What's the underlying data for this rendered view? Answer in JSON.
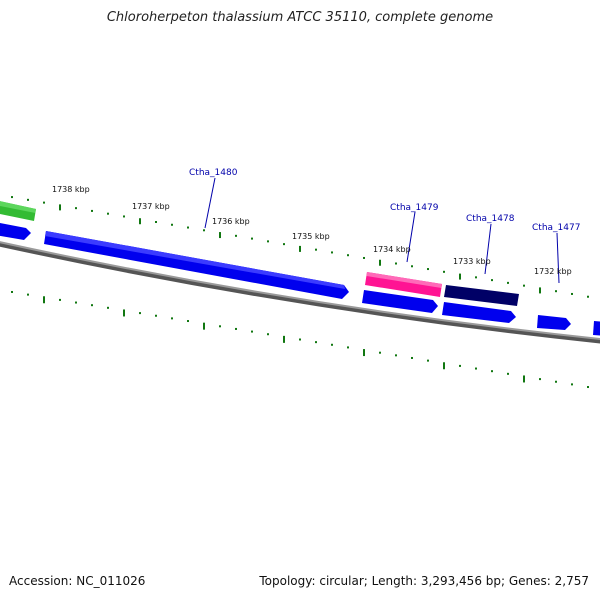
{
  "title": "Chloroherpeton thalassium ATCC 35110, complete genome",
  "footer": {
    "accession": "Accession: NC_011026",
    "summary": "Topology: circular; Length: 3,293,456 bp; Genes: 2,757"
  },
  "scale_labels": [
    "1738 kbp",
    "1737 kbp",
    "1736 kbp",
    "1735 kbp",
    "1734 kbp",
    "1733 kbp",
    "1732 kbp"
  ],
  "gene_labels": [
    "Ctha_1480",
    "Ctha_1479",
    "Ctha_1478",
    "Ctha_1477"
  ],
  "colors": {
    "cds": "#0000ee",
    "rna": "#ff1493",
    "dark_feature": "#000066",
    "green_feature": "#33bb33",
    "backbone": "#777777",
    "ticks": "#117711",
    "label_leader": "#0000aa"
  }
}
